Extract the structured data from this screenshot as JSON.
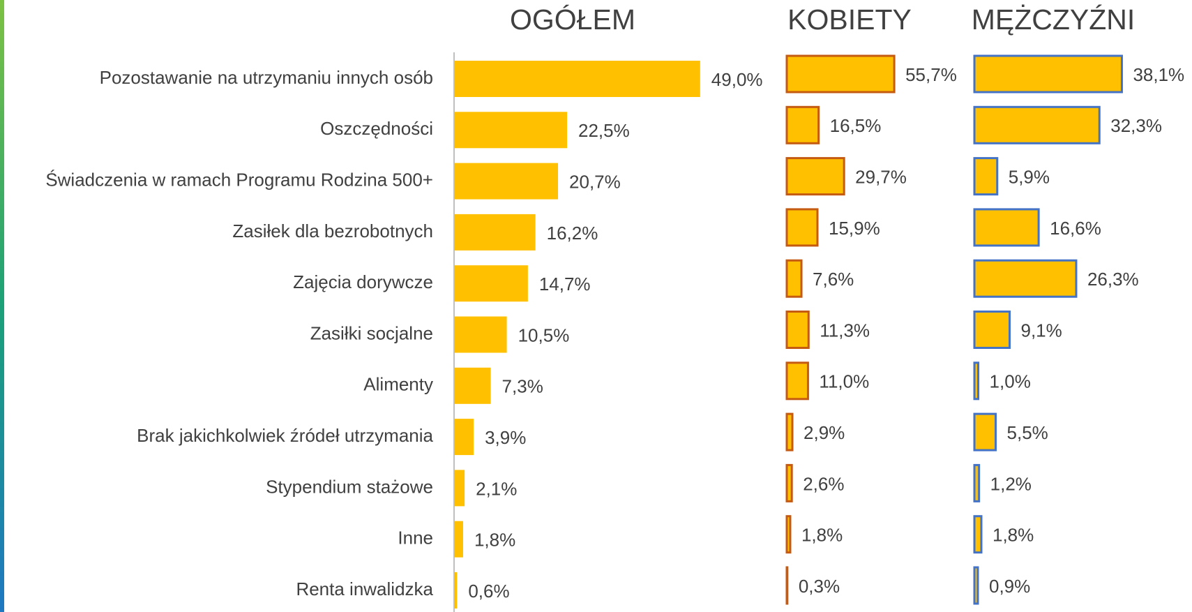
{
  "chart_data": [
    {
      "type": "barh",
      "title": "OGÓŁEM",
      "color": "#FFC000",
      "edgecolor": null,
      "xlim": [
        0,
        50
      ],
      "categories": [
        "Pozostawanie na utrzymaniu innych osób",
        "Oszczędności",
        "Świadczenia w ramach Programu Rodzina 500+",
        "Zasiłek dla bezrobotnych",
        "Zajęcia dorywcze",
        "Zasiłki socjalne",
        "Alimenty",
        "Brak jakichkolwiek źródeł utrzymania",
        "Stypendium stażowe",
        "Inne",
        "Renta inwalidzka"
      ],
      "values": [
        49.0,
        22.5,
        20.7,
        16.2,
        14.7,
        10.5,
        7.3,
        3.9,
        2.1,
        1.8,
        0.6
      ],
      "value_labels": [
        "49,0%",
        "22,5%",
        "20,7%",
        "16,2%",
        "14,7%",
        "10,5%",
        "7,3%",
        "3,9%",
        "2,1%",
        "1,8%",
        "0,6%"
      ]
    },
    {
      "type": "barh",
      "title": "KOBIETY",
      "color": "#FFC000",
      "edgecolor": "#C55A11",
      "xlim": [
        0,
        60
      ],
      "values": [
        55.7,
        16.5,
        29.7,
        15.9,
        7.6,
        11.3,
        11.0,
        2.9,
        2.6,
        1.8,
        0.3
      ],
      "value_labels": [
        "55,7%",
        "16,5%",
        "29,7%",
        "15,9%",
        "7,6%",
        "11,3%",
        "11,0%",
        "2,9%",
        "2,6%",
        "1,8%",
        "0,3%"
      ]
    },
    {
      "type": "barh",
      "title": "MĘŻCZYŹNI",
      "color": "#FFC000",
      "edgecolor": "#4472C4",
      "xlim": [
        0,
        40
      ],
      "values": [
        38.1,
        32.3,
        5.9,
        16.6,
        26.3,
        9.1,
        1.0,
        5.5,
        1.2,
        1.8,
        0.9
      ],
      "value_labels": [
        "38,1%",
        "32,3%",
        "5,9%",
        "16,6%",
        "26,3%",
        "9,1%",
        "1,0%",
        "5,5%",
        "1,2%",
        "1,8%",
        "0,9%"
      ]
    }
  ]
}
